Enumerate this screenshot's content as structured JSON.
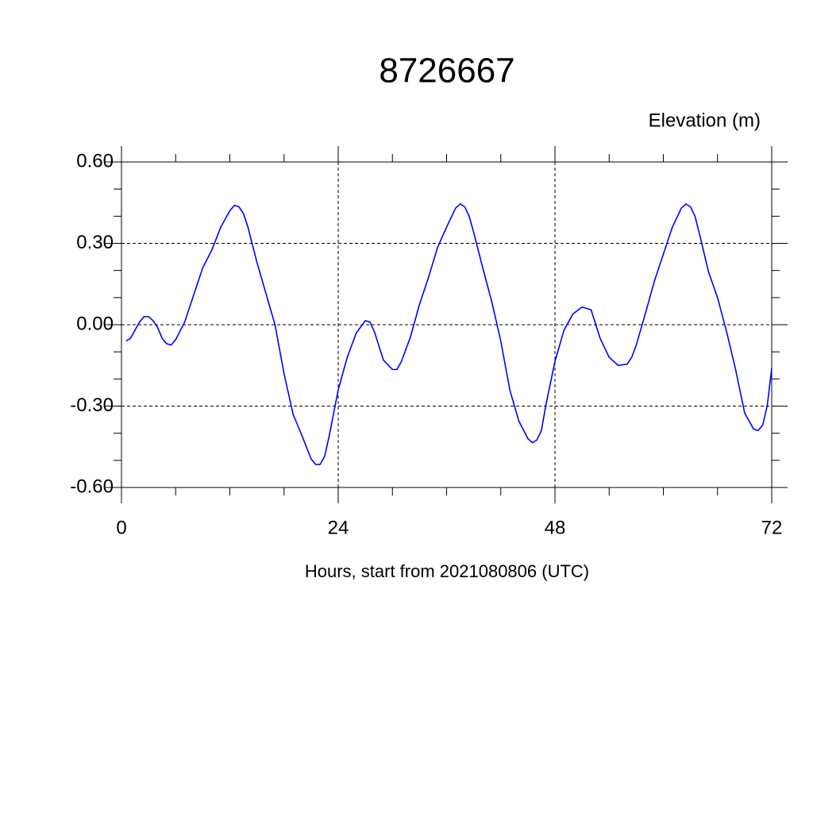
{
  "chart_data": {
    "type": "line",
    "title": "8726667",
    "ylabel": "Elevation (m)",
    "xlabel": "Hours, start from 2021080806 (UTC)",
    "xlim": [
      0,
      72
    ],
    "ylim": [
      -0.6,
      0.6
    ],
    "xticks": [
      0,
      24,
      48,
      72
    ],
    "yticks": [
      {
        "value": -0.6,
        "label": "-0.60"
      },
      {
        "value": -0.3,
        "label": "-0.30"
      },
      {
        "value": 0,
        "label": "0.00"
      },
      {
        "value": 0.3,
        "label": "0.30"
      },
      {
        "value": 0.6,
        "label": "0.60"
      }
    ],
    "xminorticks": [
      6,
      12,
      18,
      30,
      36,
      42,
      54,
      60,
      66
    ],
    "yminorticks": [
      -0.5,
      -0.4,
      -0.2,
      -0.1,
      0.1,
      0.2,
      0.4,
      0.5
    ],
    "grid": true,
    "series": [
      {
        "color": "#0000ff",
        "x": [
          0.5,
          1,
          2,
          2.5,
          3,
          3.5,
          4,
          4.5,
          5,
          5.5,
          6,
          7,
          8,
          9,
          10,
          11,
          12,
          12.5,
          13,
          13.5,
          14,
          15,
          16,
          17,
          18,
          19,
          20,
          21,
          21.5,
          22,
          22.5,
          23,
          24,
          25,
          26,
          27,
          27.5,
          28,
          29,
          30,
          30.5,
          31,
          32,
          33,
          34,
          35,
          36,
          37,
          37.5,
          38,
          38.5,
          39,
          40,
          41,
          42,
          43,
          44,
          45,
          45.5,
          46,
          46.5,
          47,
          48,
          49,
          50,
          51,
          52,
          53,
          54,
          55,
          56,
          56.5,
          57,
          58,
          59,
          60,
          61,
          62,
          62.5,
          63,
          63.5,
          64,
          65,
          66,
          67,
          68,
          69,
          70,
          70.5,
          71,
          71.5,
          72
        ],
        "values": [
          -0.06,
          -0.05,
          0.01,
          0.03,
          0.03,
          0.015,
          -0.01,
          -0.05,
          -0.07,
          -0.075,
          -0.055,
          0.01,
          0.11,
          0.21,
          0.275,
          0.36,
          0.42,
          0.44,
          0.435,
          0.41,
          0.36,
          0.23,
          0.115,
          0,
          -0.18,
          -0.33,
          -0.41,
          -0.495,
          -0.515,
          -0.515,
          -0.485,
          -0.41,
          -0.24,
          -0.12,
          -0.03,
          0.015,
          0.01,
          -0.025,
          -0.13,
          -0.165,
          -0.165,
          -0.135,
          -0.045,
          0.075,
          0.175,
          0.285,
          0.36,
          0.43,
          0.445,
          0.435,
          0.4,
          0.34,
          0.21,
          0.085,
          -0.06,
          -0.24,
          -0.355,
          -0.42,
          -0.435,
          -0.425,
          -0.39,
          -0.295,
          -0.135,
          -0.02,
          0.04,
          0.065,
          0.055,
          -0.05,
          -0.12,
          -0.15,
          -0.145,
          -0.12,
          -0.075,
          0.04,
          0.16,
          0.26,
          0.36,
          0.43,
          0.445,
          0.435,
          0.4,
          0.335,
          0.195,
          0.1,
          -0.025,
          -0.165,
          -0.325,
          -0.385,
          -0.39,
          -0.37,
          -0.3,
          -0.16
        ]
      }
    ]
  }
}
